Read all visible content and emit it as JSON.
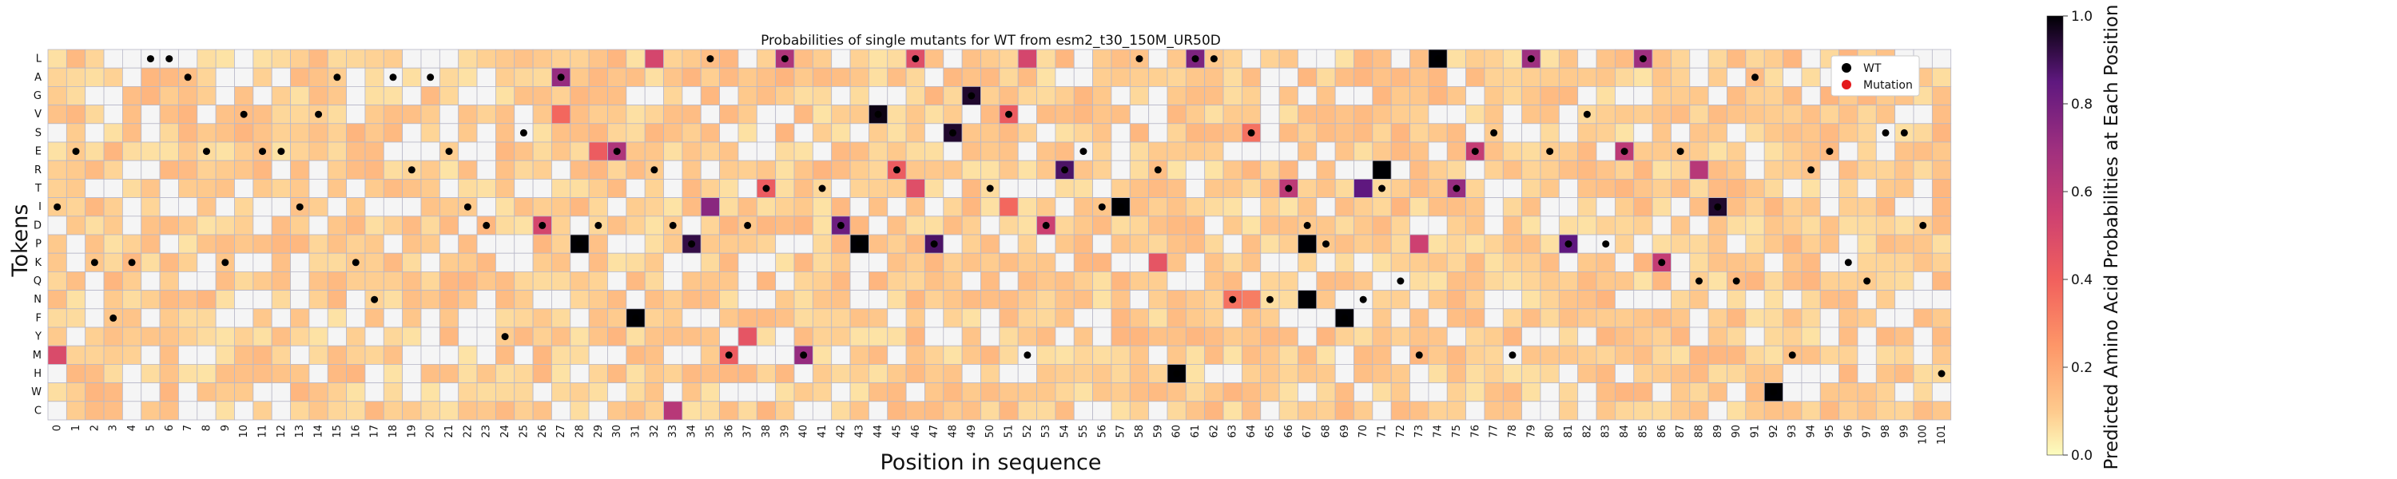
{
  "chart_data": {
    "type": "heatmap",
    "title": "Probabilities of single mutants for WT from esm2_t30_150M_UR50D",
    "xlabel": "Position in sequence",
    "ylabel": "Tokens",
    "colorbar_label": "Predicted Amino Acid Probabilities at Each Position",
    "colorbar_ticks": [
      "0.0",
      "0.2",
      "0.4",
      "0.6",
      "0.8",
      "1.0"
    ],
    "vrange": [
      0,
      1
    ],
    "colormap": "magma_r",
    "legend": {
      "placement": "top-right",
      "entries": [
        {
          "label": "WT",
          "color": "#000000"
        },
        {
          "label": "Mutation",
          "color": "#e31a1c"
        }
      ]
    },
    "tokens": [
      "L",
      "A",
      "G",
      "V",
      "S",
      "E",
      "R",
      "T",
      "I",
      "D",
      "P",
      "K",
      "Q",
      "N",
      "F",
      "Y",
      "M",
      "H",
      "W",
      "C"
    ],
    "positions": [
      "0",
      "1",
      "2",
      "3",
      "4",
      "5",
      "6",
      "7",
      "8",
      "9",
      "10",
      "11",
      "12",
      "13",
      "14",
      "15",
      "16",
      "17",
      "18",
      "19",
      "20",
      "21",
      "22",
      "23",
      "24",
      "25",
      "26",
      "27",
      "28",
      "29",
      "30",
      "31",
      "32",
      "33",
      "34",
      "35",
      "36",
      "37",
      "38",
      "39",
      "40",
      "41",
      "42",
      "43",
      "44",
      "45",
      "46",
      "47",
      "48",
      "49",
      "50",
      "51",
      "52",
      "53",
      "54",
      "55",
      "56",
      "57",
      "58",
      "59",
      "60",
      "61",
      "62",
      "63",
      "64",
      "65",
      "66",
      "67",
      "68",
      "69",
      "70",
      "71",
      "72",
      "73",
      "74",
      "75",
      "76",
      "77",
      "78",
      "79",
      "80",
      "81",
      "82",
      "83",
      "84",
      "85",
      "86",
      "87",
      "88",
      "89",
      "90",
      "91",
      "92",
      "93",
      "94",
      "95",
      "96",
      "97",
      "98",
      "99",
      "100",
      "101"
    ],
    "wild_type": [
      "I",
      "E",
      "K",
      "F",
      "K",
      "L",
      "L",
      "A",
      "E",
      "K",
      "V",
      "E",
      "E",
      "I",
      "V",
      "A",
      "K",
      "N",
      "A",
      "R",
      "A",
      "E",
      "I",
      "D",
      "Y",
      "S",
      "D",
      "A",
      "P",
      "D",
      "E",
      "F",
      "R",
      "D",
      "P",
      "L",
      "M",
      "D",
      "T",
      "L",
      "M",
      "T",
      "D",
      "P",
      "V",
      "R",
      "L",
      "P",
      "S",
      "G",
      "T",
      "V",
      "M",
      "D",
      "R",
      "E",
      "I",
      "I",
      "L",
      "R",
      "H",
      "L",
      "L",
      "N",
      "S",
      "N",
      "T",
      "D",
      "P",
      "F",
      "N",
      "T",
      "Q",
      "M",
      "L",
      "T",
      "E",
      "S",
      "M",
      "L",
      "E",
      "P",
      "V",
      "P",
      "E",
      "L",
      "K",
      "E",
      "Q",
      "I",
      "Q",
      "A",
      "W",
      "M",
      "R",
      "E",
      "K",
      "Q",
      "S",
      "S",
      "D",
      "H"
    ],
    "highlights": [
      {
        "token": "A",
        "position": "27",
        "value": 0.72
      },
      {
        "token": "L",
        "position": "32",
        "value": 0.52
      },
      {
        "token": "L",
        "position": "39",
        "value": 0.65
      },
      {
        "token": "L",
        "position": "46",
        "value": 0.48
      },
      {
        "token": "L",
        "position": "52",
        "value": 0.52
      },
      {
        "token": "L",
        "position": "61",
        "value": 0.78
      },
      {
        "token": "L",
        "position": "74",
        "value": 1.0
      },
      {
        "token": "L",
        "position": "79",
        "value": 0.7
      },
      {
        "token": "L",
        "position": "85",
        "value": 0.7
      },
      {
        "token": "G",
        "position": "49",
        "value": 0.95
      },
      {
        "token": "V",
        "position": "44",
        "value": 0.98
      },
      {
        "token": "V",
        "position": "51",
        "value": 0.42
      },
      {
        "token": "V",
        "position": "27",
        "value": 0.38
      },
      {
        "token": "S",
        "position": "48",
        "value": 0.95
      },
      {
        "token": "S",
        "position": "64",
        "value": 0.35
      },
      {
        "token": "E",
        "position": "29",
        "value": 0.42
      },
      {
        "token": "E",
        "position": "30",
        "value": 0.65
      },
      {
        "token": "E",
        "position": "76",
        "value": 0.58
      },
      {
        "token": "E",
        "position": "84",
        "value": 0.6
      },
      {
        "token": "R",
        "position": "45",
        "value": 0.42
      },
      {
        "token": "R",
        "position": "54",
        "value": 0.88
      },
      {
        "token": "R",
        "position": "71",
        "value": 1.0
      },
      {
        "token": "R",
        "position": "88",
        "value": 0.62
      },
      {
        "token": "T",
        "position": "38",
        "value": 0.42
      },
      {
        "token": "T",
        "position": "46",
        "value": 0.48
      },
      {
        "token": "T",
        "position": "66",
        "value": 0.6
      },
      {
        "token": "T",
        "position": "70",
        "value": 0.85
      },
      {
        "token": "T",
        "position": "75",
        "value": 0.72
      },
      {
        "token": "I",
        "position": "35",
        "value": 0.75
      },
      {
        "token": "I",
        "position": "51",
        "value": 0.38
      },
      {
        "token": "I",
        "position": "57",
        "value": 1.0
      },
      {
        "token": "I",
        "position": "89",
        "value": 0.95
      },
      {
        "token": "D",
        "position": "26",
        "value": 0.52
      },
      {
        "token": "D",
        "position": "42",
        "value": 0.82
      },
      {
        "token": "D",
        "position": "53",
        "value": 0.55
      },
      {
        "token": "P",
        "position": "28",
        "value": 1.0
      },
      {
        "token": "P",
        "position": "34",
        "value": 0.92
      },
      {
        "token": "P",
        "position": "43",
        "value": 1.0
      },
      {
        "token": "P",
        "position": "47",
        "value": 0.88
      },
      {
        "token": "P",
        "position": "67",
        "value": 1.0
      },
      {
        "token": "P",
        "position": "73",
        "value": 0.55
      },
      {
        "token": "P",
        "position": "81",
        "value": 0.85
      },
      {
        "token": "K",
        "position": "86",
        "value": 0.58
      },
      {
        "token": "K",
        "position": "59",
        "value": 0.45
      },
      {
        "token": "N",
        "position": "67",
        "value": 1.0
      },
      {
        "token": "N",
        "position": "63",
        "value": 0.35
      },
      {
        "token": "N",
        "position": "64",
        "value": 0.32
      },
      {
        "token": "F",
        "position": "31",
        "value": 1.0
      },
      {
        "token": "F",
        "position": "69",
        "value": 1.0
      },
      {
        "token": "Y",
        "position": "37",
        "value": 0.45
      },
      {
        "token": "M",
        "position": "0",
        "value": 0.5
      },
      {
        "token": "M",
        "position": "36",
        "value": 0.42
      },
      {
        "token": "M",
        "position": "40",
        "value": 0.72
      },
      {
        "token": "H",
        "position": "60",
        "value": 1.0
      },
      {
        "token": "W",
        "position": "92",
        "value": 1.0
      },
      {
        "token": "C",
        "position": "33",
        "value": 0.62
      }
    ]
  }
}
